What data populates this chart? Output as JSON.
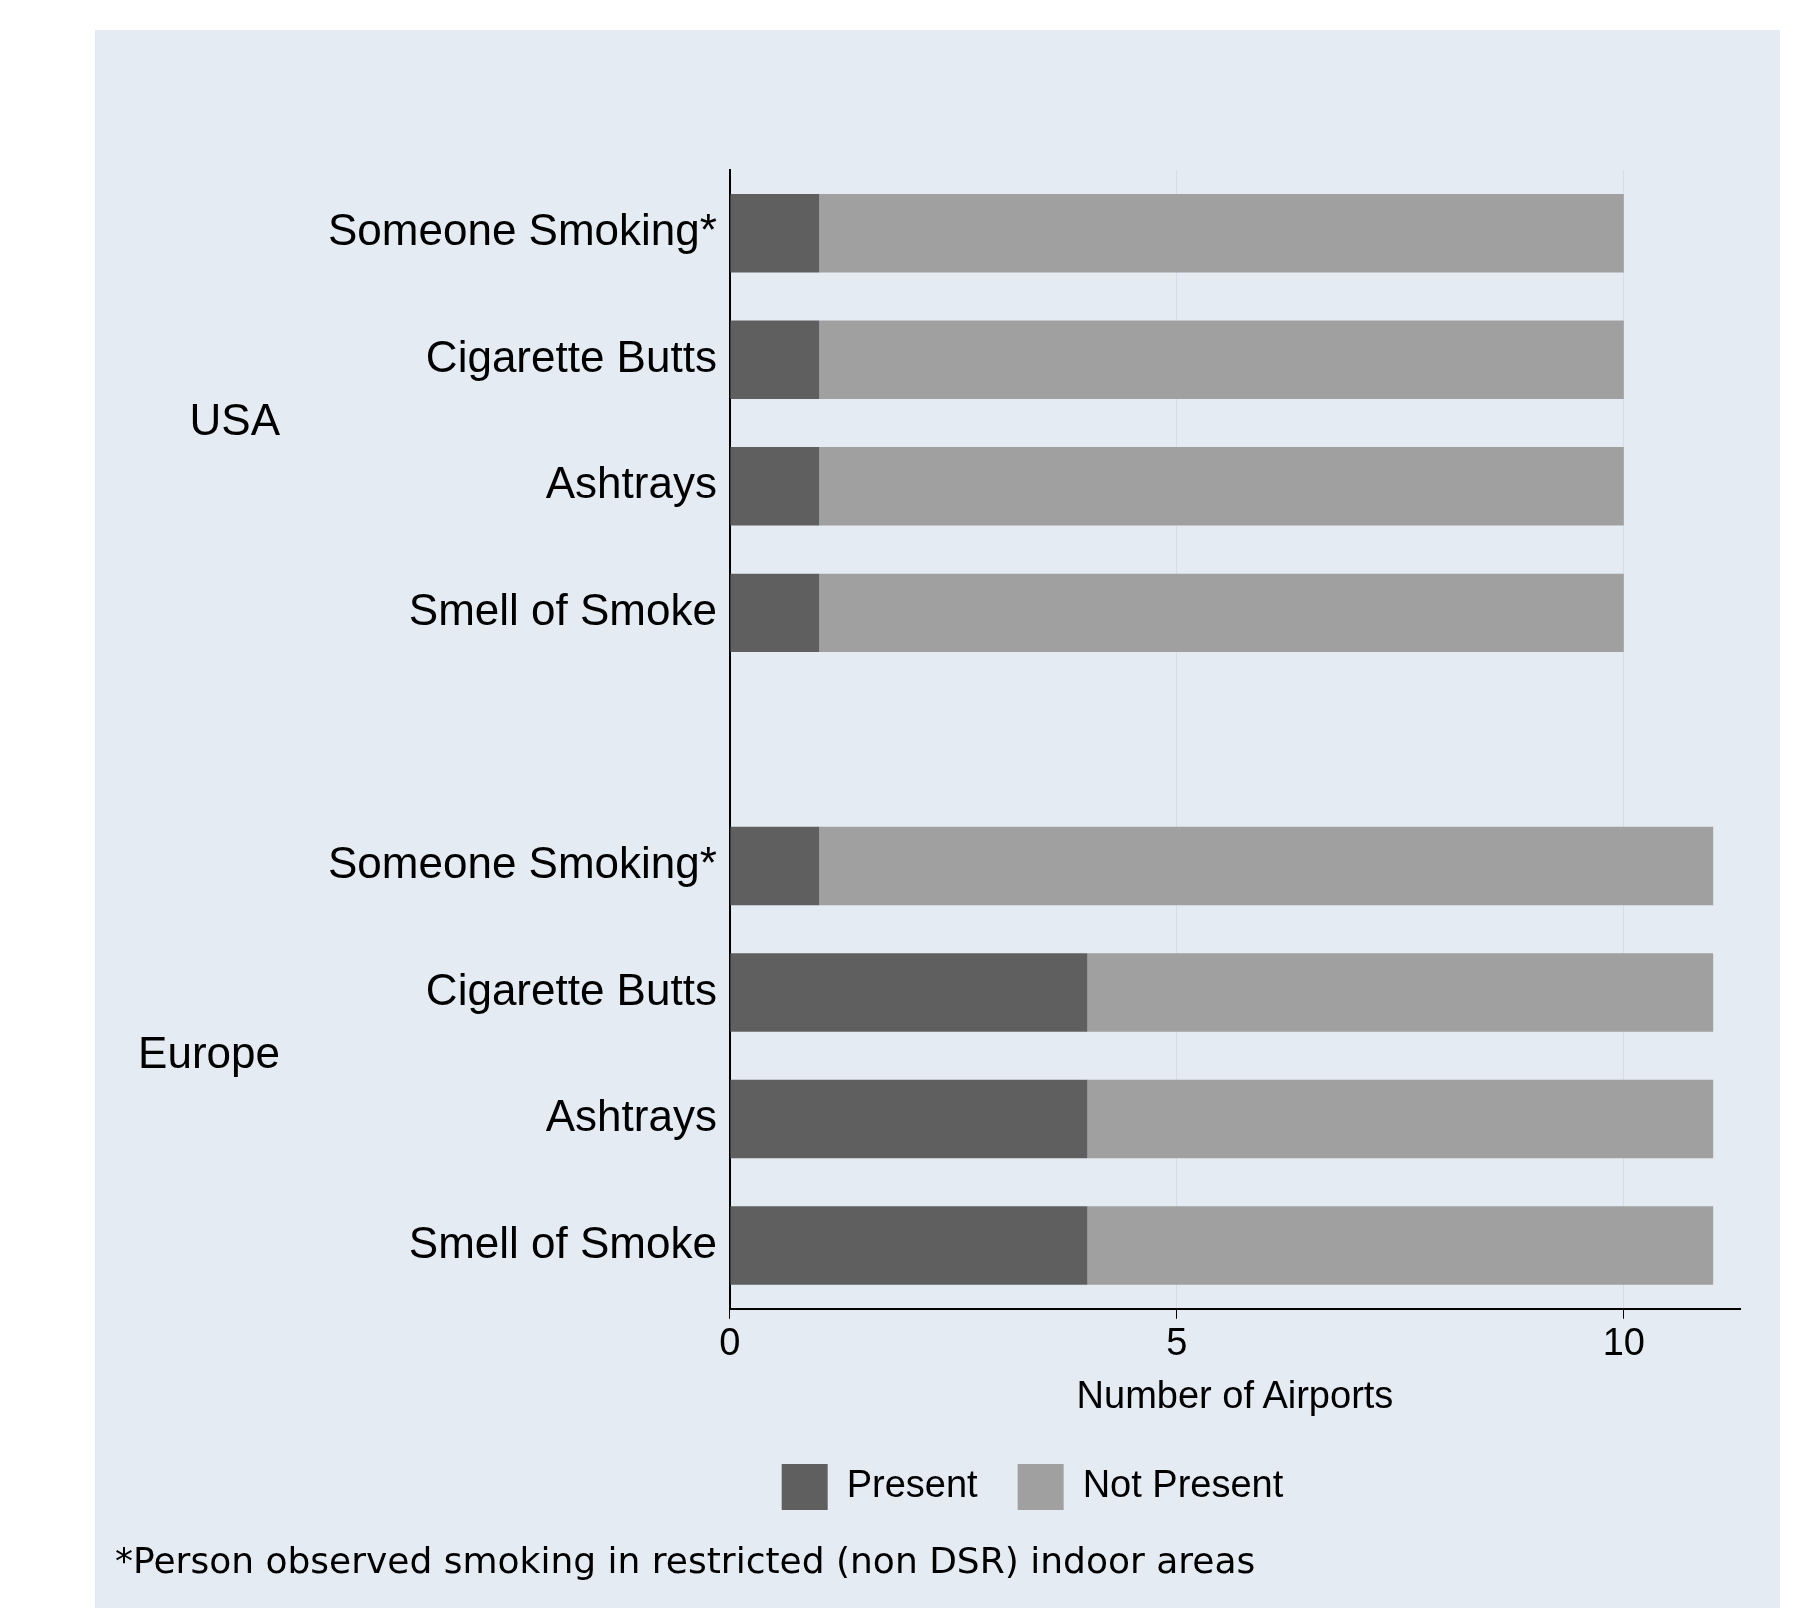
{
  "chart_data": {
    "type": "bar",
    "orientation": "horizontal",
    "stacked": true,
    "categories": [
      "Someone Smoking*",
      "Cigarette Butts",
      "Ashtrays",
      "Smell of Smoke",
      null,
      "Someone Smoking*",
      "Cigarette Butts",
      "Ashtrays",
      "Smell of Smoke"
    ],
    "series": [
      {
        "name": "Present",
        "color": "#5f5f5f",
        "values": [
          1,
          1,
          1,
          1,
          null,
          1,
          4,
          4,
          4
        ]
      },
      {
        "name": "Not Present",
        "color": "#a0a0a0",
        "values": [
          9,
          9,
          9,
          9,
          null,
          10,
          7,
          7,
          7
        ]
      }
    ],
    "xlabel": "Number of Airports",
    "xlim": [
      0,
      11.3
    ],
    "xticks": [
      0,
      5,
      10
    ],
    "grid": "x",
    "legend": "bottom",
    "annotations": [
      "USA",
      "Europe",
      "*Person observed smoking in restricted (non DSR) indoor areas"
    ]
  }
}
